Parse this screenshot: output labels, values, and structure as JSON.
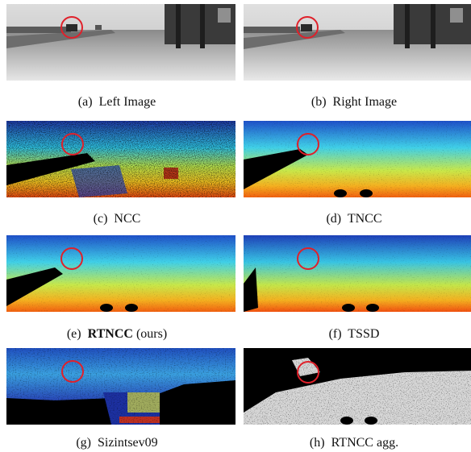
{
  "figure": {
    "panels": [
      {
        "id": "a",
        "label": "(a)",
        "name": "Left Image",
        "kind": "gray"
      },
      {
        "id": "b",
        "label": "(b)",
        "name": "Right Image",
        "kind": "gray"
      },
      {
        "id": "c",
        "label": "(c)",
        "name": "NCC",
        "kind": "noisy"
      },
      {
        "id": "d",
        "label": "(d)",
        "name": "TNCC",
        "kind": "smooth"
      },
      {
        "id": "e",
        "label": "(e)",
        "name": "RTNCC",
        "suffix": "(ours)",
        "kind": "smooth"
      },
      {
        "id": "f",
        "label": "(f)",
        "name": "TSSD",
        "kind": "smooth"
      },
      {
        "id": "g",
        "label": "(g)",
        "name": "Sizintsev09",
        "kind": "sparse"
      },
      {
        "id": "h",
        "label": "(h)",
        "name": "RTNCC agg.",
        "kind": "mask"
      }
    ],
    "highlight_color": "#e0202a"
  }
}
